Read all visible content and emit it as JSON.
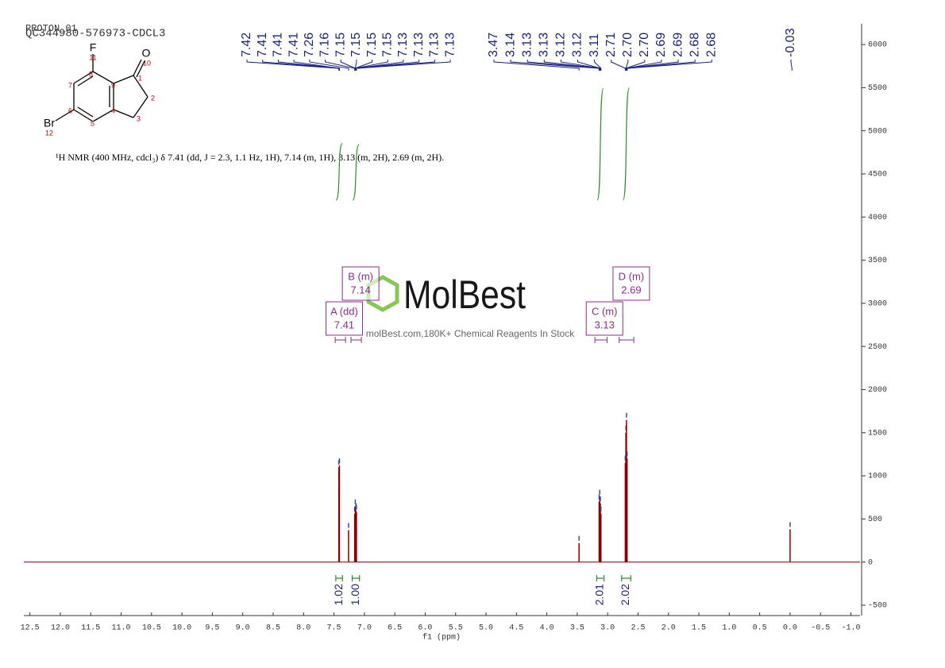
{
  "header": {
    "titles": [
      "PROTON_01",
      "QC344980-576973-CDCL3"
    ]
  },
  "molecule": {
    "atoms": [
      "F",
      "11",
      "O",
      "10",
      "1",
      "2",
      "3",
      "4",
      "5",
      "6",
      "7",
      "8",
      "9",
      "Br",
      "12"
    ]
  },
  "description": "¹H NMR (400 MHz, cdcl₃) δ 7.41 (dd, J = 2.3, 1.1 Hz, 1H), 7.14 (m, 1H), 3.13 (m, 2H), 2.69 (m, 2H).",
  "watermark": {
    "logo": "MolBest",
    "tagline": "molBest.com,180K+ Chemical Reagents In Stock"
  },
  "chart_data": {
    "type": "spectrum",
    "x_label": "f1 (ppm)",
    "color": "#8b0000",
    "xlim": [
      12.6,
      -1.15
    ],
    "ylim": [
      -620,
      6240
    ],
    "xticks": [
      12.5,
      {
        "value": 12,
        "label": "12.0"
      },
      11.5,
      {
        "value": 11,
        "label": "11.0"
      },
      10.5,
      {
        "value": 10,
        "label": "10.0"
      },
      9.5,
      {
        "value": 9,
        "label": "9.0"
      },
      8.5,
      {
        "value": 8,
        "label": "8.0"
      },
      7.5,
      {
        "value": 7,
        "label": "7.0"
      },
      6.5,
      {
        "value": 6,
        "label": "6.0"
      },
      5.5,
      {
        "value": 5,
        "label": "5.0"
      },
      4.5,
      {
        "value": 4,
        "label": "4.0"
      },
      3.5,
      {
        "value": 3,
        "label": "3.0"
      },
      2.5,
      {
        "value": 2,
        "label": "2.0"
      },
      1.5,
      {
        "value": 1,
        "label": "1.0"
      },
      0.5,
      {
        "value": 0,
        "label": "0.0"
      },
      -0.5,
      {
        "value": -1,
        "label": "-1.0"
      }
    ],
    "yticks": [
      6000,
      5500,
      5000,
      4500,
      4000,
      3500,
      3000,
      2500,
      2000,
      1500,
      1000,
      500,
      0,
      -500
    ],
    "x": [
      7.42,
      7.41,
      7.26,
      7.16,
      7.15,
      7.14,
      7.13,
      3.47,
      3.14,
      3.13,
      3.12,
      3.11,
      2.71,
      2.7,
      2.69,
      2.68,
      0.0
    ],
    "values": [
      1100,
      1120,
      370,
      560,
      645,
      600,
      580,
      220,
      700,
      755,
      680,
      560,
      1150,
      1500,
      1648,
      1200,
      380
    ],
    "peak_picks": [
      [
        {
          "value": 7.42,
          "label": "7.42"
        },
        {
          "value": 7.41,
          "label": "7.41"
        },
        {
          "value": 7.41,
          "label": "7.41"
        },
        {
          "value": 7.41,
          "label": "7.41"
        },
        {
          "value": 7.26,
          "label": "7.26"
        },
        {
          "value": 7.16,
          "label": "7.16"
        },
        {
          "value": 7.15,
          "label": "7.15"
        },
        {
          "value": 7.15,
          "label": "7.15"
        },
        {
          "value": 7.15,
          "label": "7.15"
        },
        {
          "value": 7.15,
          "label": "7.15"
        },
        {
          "value": 7.13,
          "label": "7.13"
        },
        {
          "value": 7.13,
          "label": "7.13"
        },
        {
          "value": 7.13,
          "label": "7.13"
        },
        {
          "value": 7.13,
          "label": "7.13"
        }
      ],
      [
        {
          "value": 3.47,
          "label": "3.47"
        },
        {
          "value": 3.14,
          "label": "3.14"
        },
        {
          "value": 3.13,
          "label": "3.13"
        },
        {
          "value": 3.13,
          "label": "3.13"
        },
        {
          "value": 3.12,
          "label": "3.12"
        },
        {
          "value": 3.12,
          "label": "3.12"
        },
        {
          "value": 3.11,
          "label": "3.11"
        },
        {
          "value": 2.71,
          "label": "2.71"
        },
        {
          "value": 2.7,
          "label": "2.70"
        },
        {
          "value": 2.7,
          "label": "2.70"
        },
        {
          "value": 2.69,
          "label": "2.69"
        },
        {
          "value": 2.69,
          "label": "2.69"
        },
        {
          "value": 2.68,
          "label": "2.68"
        },
        {
          "value": 2.68,
          "label": "2.68"
        }
      ],
      [
        {
          "value": -0.03,
          "label": "-0.03"
        }
      ]
    ],
    "multiplets": [
      {
        "label": "A (dd)",
        "shift": 7.41,
        "range": [
          7.48,
          7.31
        ]
      },
      {
        "label": "B (m)",
        "shift": 7.14,
        "range": [
          7.22,
          7.05
        ]
      },
      {
        "label": "C (m)",
        "shift": 3.13,
        "range": [
          3.21,
          3.01
        ]
      },
      {
        "label": "D (m)",
        "shift": 2.69,
        "range": [
          2.81,
          2.57
        ]
      }
    ],
    "integrals": {
      "ranges": [
        [
          7.47,
          7.36
        ],
        [
          7.2,
          7.08
        ],
        [
          3.18,
          3.06
        ],
        [
          2.77,
          2.62
        ]
      ],
      "values": [
        1.02,
        1.0,
        2.01,
        2.02
      ],
      "value_labels": [
        "1.02",
        "1.00",
        "2.01",
        "2.02"
      ]
    }
  }
}
